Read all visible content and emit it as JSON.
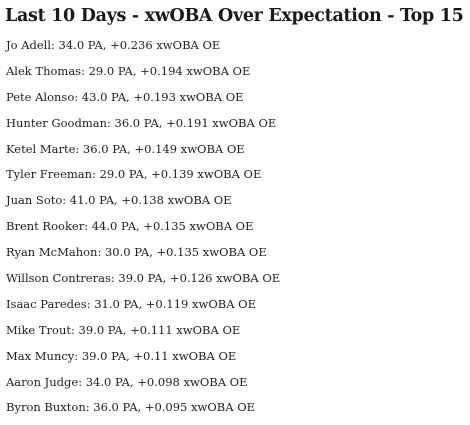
{
  "title": "Last 10 Days - xwOBA Over Expectation - Top 15",
  "rows": [
    "Jo Adell: 34.0 PA, +0.236 xwOBA OE",
    "Alek Thomas: 29.0 PA, +0.194 xwOBA OE",
    "Pete Alonso: 43.0 PA, +0.193 xwOBA OE",
    "Hunter Goodman: 36.0 PA, +0.191 xwOBA OE",
    "Ketel Marte: 36.0 PA, +0.149 xwOBA OE",
    "Tyler Freeman: 29.0 PA, +0.139 xwOBA OE",
    "Juan Soto: 41.0 PA, +0.138 xwOBA OE",
    "Brent Rooker: 44.0 PA, +0.135 xwOBA OE",
    "Ryan McMahon: 30.0 PA, +0.135 xwOBA OE",
    "Willson Contreras: 39.0 PA, +0.126 xwOBA OE",
    "Isaac Paredes: 31.0 PA, +0.119 xwOBA OE",
    "Mike Trout: 39.0 PA, +0.111 xwOBA OE",
    "Max Muncy: 39.0 PA, +0.11 xwOBA OE",
    "Aaron Judge: 34.0 PA, +0.098 xwOBA OE",
    "Byron Buxton: 36.0 PA, +0.095 xwOBA OE"
  ]
}
